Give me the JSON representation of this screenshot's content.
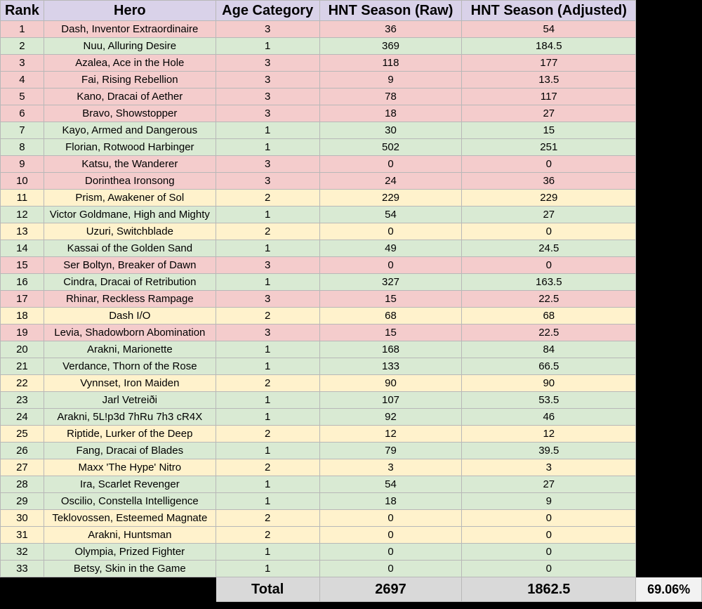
{
  "headers": [
    "Rank",
    "Hero",
    "Age Category",
    "HNT Season (Raw)",
    "HNT Season (Adjusted)"
  ],
  "colors": {
    "age1": "#d9ead3",
    "age2": "#fff2cc",
    "age3": "#f4cccc",
    "header": "#d9d2e9"
  },
  "rows": [
    {
      "rank": "1",
      "hero": "Dash, Inventor Extraordinaire",
      "age": "3",
      "raw": "36",
      "adj": "54"
    },
    {
      "rank": "2",
      "hero": "Nuu, Alluring Desire",
      "age": "1",
      "raw": "369",
      "adj": "184.5"
    },
    {
      "rank": "3",
      "hero": "Azalea, Ace in the Hole",
      "age": "3",
      "raw": "118",
      "adj": "177"
    },
    {
      "rank": "4",
      "hero": "Fai, Rising Rebellion",
      "age": "3",
      "raw": "9",
      "adj": "13.5"
    },
    {
      "rank": "5",
      "hero": "Kano, Dracai of Aether",
      "age": "3",
      "raw": "78",
      "adj": "117"
    },
    {
      "rank": "6",
      "hero": "Bravo, Showstopper",
      "age": "3",
      "raw": "18",
      "adj": "27"
    },
    {
      "rank": "7",
      "hero": "Kayo, Armed and Dangerous",
      "age": "1",
      "raw": "30",
      "adj": "15"
    },
    {
      "rank": "8",
      "hero": "Florian, Rotwood Harbinger",
      "age": "1",
      "raw": "502",
      "adj": "251"
    },
    {
      "rank": "9",
      "hero": "Katsu, the Wanderer",
      "age": "3",
      "raw": "0",
      "adj": "0"
    },
    {
      "rank": "10",
      "hero": "Dorinthea Ironsong",
      "age": "3",
      "raw": "24",
      "adj": "36"
    },
    {
      "rank": "11",
      "hero": "Prism, Awakener of Sol",
      "age": "2",
      "raw": "229",
      "adj": "229"
    },
    {
      "rank": "12",
      "hero": "Victor Goldmane, High and Mighty",
      "age": "1",
      "raw": "54",
      "adj": "27"
    },
    {
      "rank": "13",
      "hero": "Uzuri, Switchblade",
      "age": "2",
      "raw": "0",
      "adj": "0"
    },
    {
      "rank": "14",
      "hero": "Kassai of the Golden Sand",
      "age": "1",
      "raw": "49",
      "adj": "24.5"
    },
    {
      "rank": "15",
      "hero": "Ser Boltyn, Breaker of Dawn",
      "age": "3",
      "raw": "0",
      "adj": "0"
    },
    {
      "rank": "16",
      "hero": "Cindra, Dracai of Retribution",
      "age": "1",
      "raw": "327",
      "adj": "163.5"
    },
    {
      "rank": "17",
      "hero": "Rhinar, Reckless Rampage",
      "age": "3",
      "raw": "15",
      "adj": "22.5"
    },
    {
      "rank": "18",
      "hero": "Dash I/O",
      "age": "2",
      "raw": "68",
      "adj": "68"
    },
    {
      "rank": "19",
      "hero": "Levia, Shadowborn Abomination",
      "age": "3",
      "raw": "15",
      "adj": "22.5"
    },
    {
      "rank": "20",
      "hero": "Arakni, Marionette",
      "age": "1",
      "raw": "168",
      "adj": "84"
    },
    {
      "rank": "21",
      "hero": "Verdance, Thorn of the Rose",
      "age": "1",
      "raw": "133",
      "adj": "66.5"
    },
    {
      "rank": "22",
      "hero": "Vynnset, Iron Maiden",
      "age": "2",
      "raw": "90",
      "adj": "90"
    },
    {
      "rank": "23",
      "hero": "Jarl Vetreiði",
      "age": "1",
      "raw": "107",
      "adj": "53.5"
    },
    {
      "rank": "24",
      "hero": "Arakni, 5L!p3d 7hRu 7h3 cR4X",
      "age": "1",
      "raw": "92",
      "adj": "46"
    },
    {
      "rank": "25",
      "hero": "Riptide, Lurker of the Deep",
      "age": "2",
      "raw": "12",
      "adj": "12"
    },
    {
      "rank": "26",
      "hero": "Fang, Dracai of Blades",
      "age": "1",
      "raw": "79",
      "adj": "39.5"
    },
    {
      "rank": "27",
      "hero": "Maxx 'The Hype' Nitro",
      "age": "2",
      "raw": "3",
      "adj": "3"
    },
    {
      "rank": "28",
      "hero": "Ira, Scarlet Revenger",
      "age": "1",
      "raw": "54",
      "adj": "27"
    },
    {
      "rank": "29",
      "hero": "Oscilio, Constella Intelligence",
      "age": "1",
      "raw": "18",
      "adj": "9"
    },
    {
      "rank": "30",
      "hero": "Teklovossen, Esteemed Magnate",
      "age": "2",
      "raw": "0",
      "adj": "0"
    },
    {
      "rank": "31",
      "hero": "Arakni, Huntsman",
      "age": "2",
      "raw": "0",
      "adj": "0"
    },
    {
      "rank": "32",
      "hero": "Olympia, Prized Fighter",
      "age": "1",
      "raw": "0",
      "adj": "0"
    },
    {
      "rank": "33",
      "hero": "Betsy, Skin in the Game",
      "age": "1",
      "raw": "0",
      "adj": "0"
    }
  ],
  "total": {
    "label": "Total",
    "raw": "2697",
    "adj": "1862.5",
    "pct": "69.06%"
  }
}
